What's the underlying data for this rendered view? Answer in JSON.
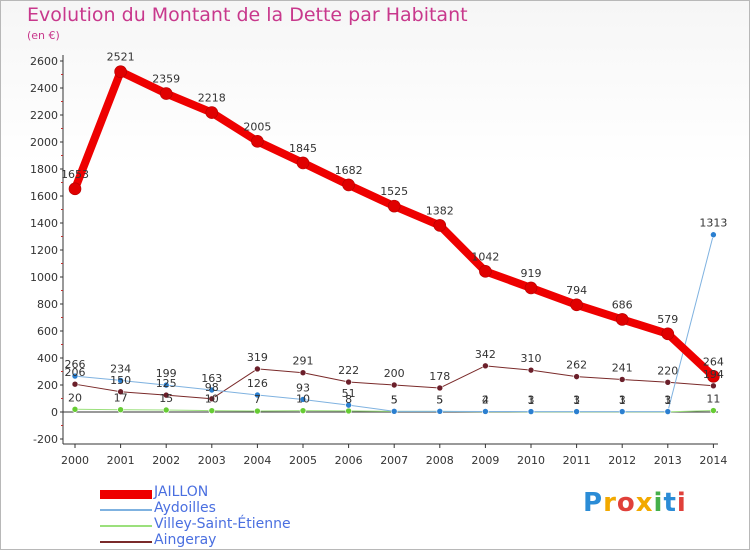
{
  "page": {
    "title": "Evolution du Montant de la Dette par Habitant",
    "unit": "(en €)"
  },
  "logo": {
    "text": "Proxiti",
    "colors": [
      "#2b8cd6",
      "#f2a900",
      "#e0403a",
      "#f2a900",
      "#45b04a",
      "#2b8cd6",
      "#e0403a"
    ]
  },
  "chart_data": {
    "type": "line",
    "title": "Evolution du Montant de la Dette par Habitant",
    "subtitle": "(en €)",
    "x": [
      2000,
      2001,
      2002,
      2003,
      2004,
      2005,
      2006,
      2007,
      2008,
      2009,
      2010,
      2011,
      2012,
      2013,
      2014
    ],
    "ylim": [
      -200,
      2600
    ],
    "ytick_step": 200,
    "grid": false,
    "legend": "bottom-left",
    "series": [
      {
        "name": "JAILLON",
        "color": "#ee0000",
        "width": 8,
        "point_color": "#e00000",
        "values": [
          1653,
          2521,
          2359,
          2218,
          2005,
          1845,
          1682,
          1525,
          1382,
          1042,
          919,
          794,
          686,
          579,
          264
        ],
        "labels": [
          "1653",
          "2521",
          "2359",
          "2218",
          "2005",
          "1845",
          "1682",
          "1525",
          "1382",
          "1042",
          "919",
          "794",
          "686",
          "579",
          "264"
        ]
      },
      {
        "name": "Aydoilles",
        "color": "#7fb2e0",
        "width": 1,
        "point_color": "#2b7fd0",
        "values": [
          266,
          234,
          199,
          163,
          126,
          93,
          51,
          5,
          5,
          4,
          3,
          3,
          3,
          3,
          1313
        ],
        "labels": [
          "266",
          "234",
          "199",
          "163",
          "126",
          "93",
          "51",
          "5",
          "5",
          "4",
          "3",
          "3",
          "3",
          "3",
          "1313"
        ]
      },
      {
        "name": "Villey-Saint-Étienne",
        "color": "#9be07c",
        "width": 1,
        "point_color": "#66cc33",
        "values": [
          20,
          17,
          15,
          10,
          7,
          10,
          8,
          5,
          5,
          2,
          1,
          1,
          1,
          1,
          11
        ],
        "labels": [
          "20",
          "17",
          "15",
          "10",
          "7",
          "10",
          "8",
          "5",
          "5",
          "2",
          "1",
          "1",
          "1",
          "1",
          "11"
        ]
      },
      {
        "name": "Aingeray",
        "color": "#7a2a2a",
        "width": 1,
        "point_color": "#6b1f2a",
        "values": [
          206,
          150,
          125,
          98,
          319,
          291,
          222,
          200,
          178,
          342,
          310,
          262,
          241,
          220,
          194
        ],
        "labels": [
          "206",
          "150",
          "125",
          "98",
          "319",
          "291",
          "222",
          "200",
          "178",
          "342",
          "310",
          "262",
          "241",
          "220",
          "194"
        ]
      }
    ]
  }
}
